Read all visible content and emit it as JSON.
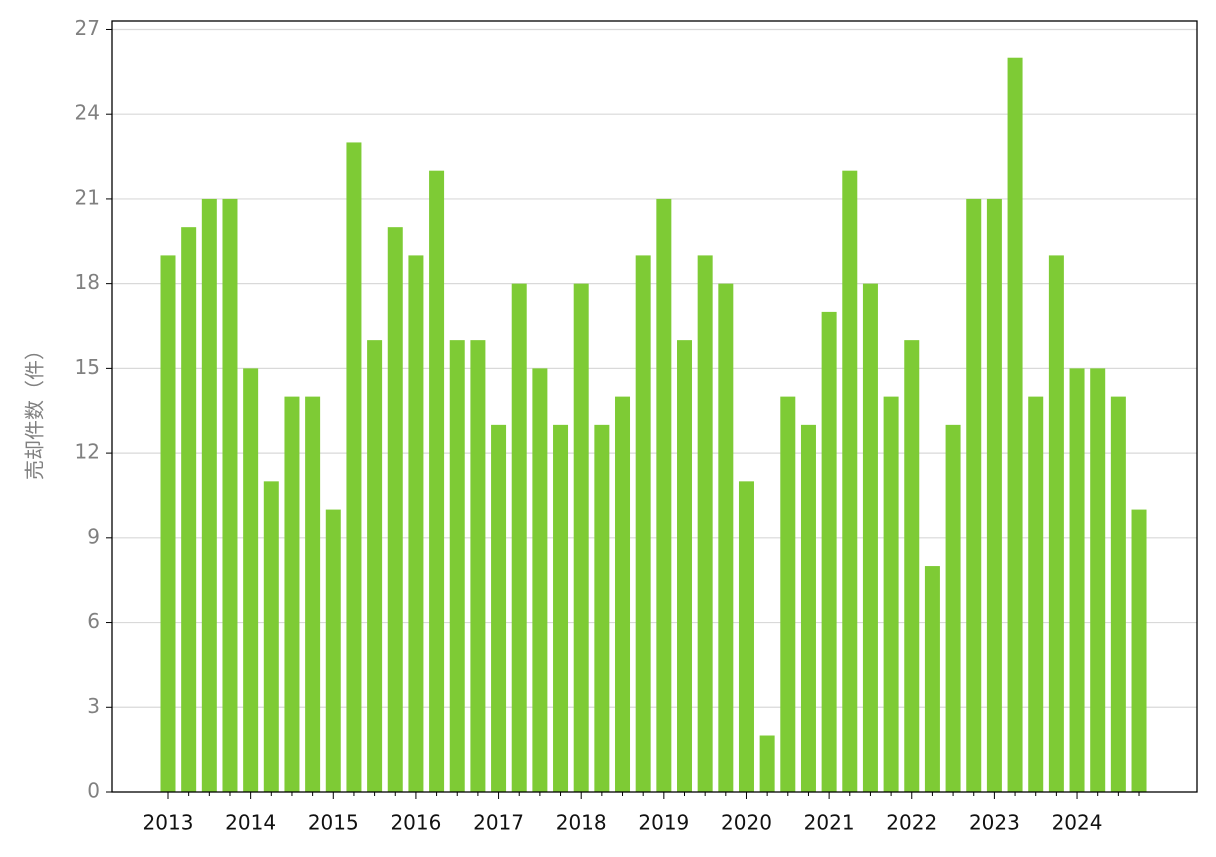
{
  "chart_data": {
    "type": "bar",
    "y_label": "売却件数（件）",
    "categories": [
      "2013",
      null,
      null,
      null,
      "2014",
      null,
      null,
      null,
      "2015",
      null,
      null,
      null,
      "2016",
      null,
      null,
      null,
      "2017",
      null,
      null,
      null,
      "2018",
      null,
      null,
      null,
      "2019",
      null,
      null,
      null,
      "2020",
      null,
      null,
      null,
      "2021",
      null,
      null,
      null,
      "2022",
      null,
      null,
      null,
      "2023",
      null,
      null,
      null,
      "2024",
      null,
      null,
      null
    ],
    "values": [
      19,
      20,
      21,
      21,
      15,
      11,
      14,
      14,
      10,
      23,
      16,
      20,
      19,
      22,
      16,
      16,
      13,
      18,
      15,
      13,
      18,
      13,
      14,
      19,
      21,
      16,
      19,
      18,
      11,
      2,
      14,
      13,
      17,
      22,
      18,
      14,
      16,
      8,
      13,
      21,
      21,
      26,
      14,
      19,
      15,
      15,
      14,
      10
    ],
    "color": "#7ecb35",
    "ylim": [
      0,
      27.3
    ],
    "yticks": [
      0,
      3,
      6,
      9,
      12,
      15,
      18,
      21,
      24,
      27
    ],
    "grid": true
  }
}
